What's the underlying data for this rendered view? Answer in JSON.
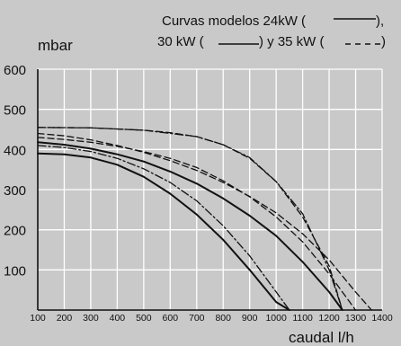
{
  "chart_data": {
    "type": "line",
    "ylabel": "mbar",
    "xlabel": "caudal l/h",
    "legend_lines": [
      "Curvas modelos 24kW (",
      "),",
      "30 kW (",
      ") y 35 kW (",
      ")"
    ],
    "legend_placement": "top-right",
    "xlim": [
      100,
      1400
    ],
    "ylim": [
      0,
      600
    ],
    "x_ticks": [
      100,
      200,
      300,
      400,
      500,
      600,
      700,
      800,
      900,
      1000,
      1100,
      1200,
      1300,
      1400
    ],
    "y_ticks": [
      100,
      200,
      300,
      400,
      500,
      600
    ],
    "grid": true,
    "colors": {
      "background": "#c9c9c9",
      "grid": "#ffffff",
      "axis": "#111111",
      "curve": "#111111"
    },
    "series": [
      {
        "style": "solid",
        "x": [
          100,
          200,
          300,
          400,
          500,
          600,
          700,
          800,
          900,
          1000,
          1050
        ],
        "y": [
          390,
          388,
          380,
          362,
          332,
          290,
          238,
          175,
          100,
          20,
          0
        ]
      },
      {
        "style": "solid",
        "x": [
          100,
          200,
          300,
          400,
          500,
          600,
          700,
          800,
          900,
          1000,
          1100,
          1200,
          1250
        ],
        "y": [
          418,
          412,
          402,
          388,
          370,
          345,
          315,
          278,
          235,
          185,
          120,
          45,
          0
        ]
      },
      {
        "style": "dashdot",
        "x": [
          100,
          200,
          300,
          400,
          500,
          600,
          700,
          800,
          900,
          1000,
          1050
        ],
        "y": [
          410,
          405,
          395,
          378,
          352,
          318,
          272,
          210,
          135,
          45,
          0
        ]
      },
      {
        "style": "dashdot",
        "x": [
          100,
          300,
          500,
          700,
          800,
          900,
          1000,
          1100,
          1200,
          1250
        ],
        "y": [
          455,
          454,
          448,
          432,
          412,
          380,
          320,
          240,
          100,
          0
        ]
      },
      {
        "style": "dashed",
        "x": [
          100,
          200,
          300,
          400,
          500,
          600,
          700,
          800,
          900,
          1000,
          1100,
          1200,
          1300
        ],
        "y": [
          430,
          425,
          418,
          408,
          395,
          378,
          355,
          322,
          282,
          232,
          170,
          90,
          0
        ]
      },
      {
        "style": "dashed",
        "x": [
          100,
          200,
          300,
          400,
          500,
          600,
          700,
          800,
          900,
          1000,
          1100,
          1200,
          1300,
          1360
        ],
        "y": [
          440,
          434,
          424,
          410,
          393,
          372,
          348,
          318,
          283,
          242,
          190,
          125,
          45,
          0
        ]
      },
      {
        "style": "dashed",
        "x": [
          100,
          300,
          500,
          600,
          700,
          800,
          900,
          1000,
          1100,
          1200,
          1250
        ],
        "y": [
          455,
          454,
          448,
          442,
          432,
          412,
          378,
          320,
          232,
          110,
          0
        ]
      }
    ]
  }
}
